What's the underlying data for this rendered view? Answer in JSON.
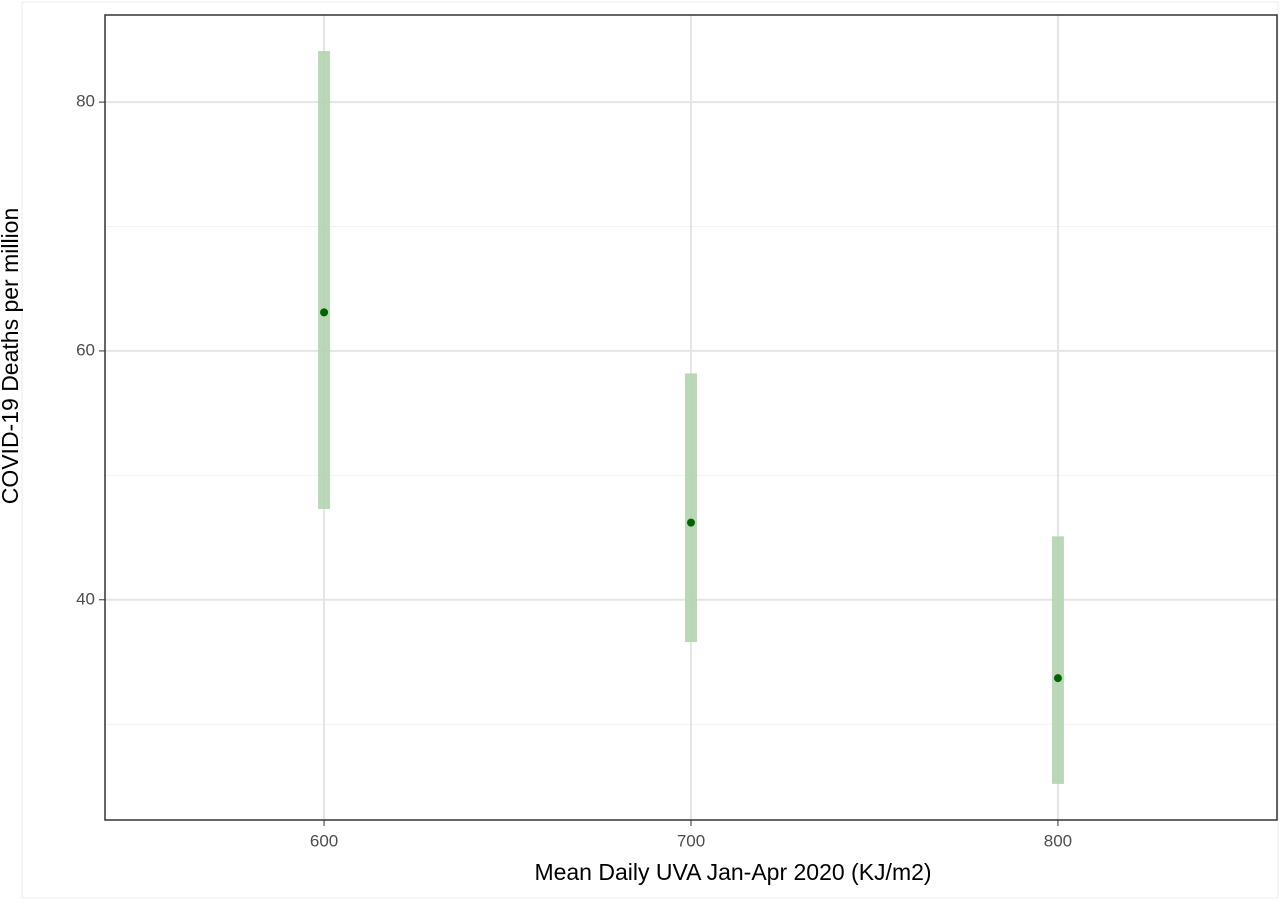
{
  "chart_data": {
    "type": "pointrange",
    "x_label": "Mean Daily UVA Jan-Apr 2020 (KJ/m2)",
    "y_label": "COVID-19 Deaths per million",
    "x": [
      600,
      700,
      800
    ],
    "values": [
      63.1,
      46.2,
      33.7
    ],
    "lower": [
      47.3,
      36.6,
      25.2
    ],
    "upper": [
      84.1,
      58.2,
      45.1
    ],
    "point_color": "#006400",
    "range_color": "#b3d4b0",
    "xlim": [
      540.3,
      859.7
    ],
    "ylim": [
      22.3,
      87.0
    ],
    "xticks": [
      600,
      700,
      800
    ],
    "yticks": [
      40,
      60,
      80
    ],
    "y_minor_grid": [
      30,
      50,
      70
    ],
    "grid": true
  }
}
